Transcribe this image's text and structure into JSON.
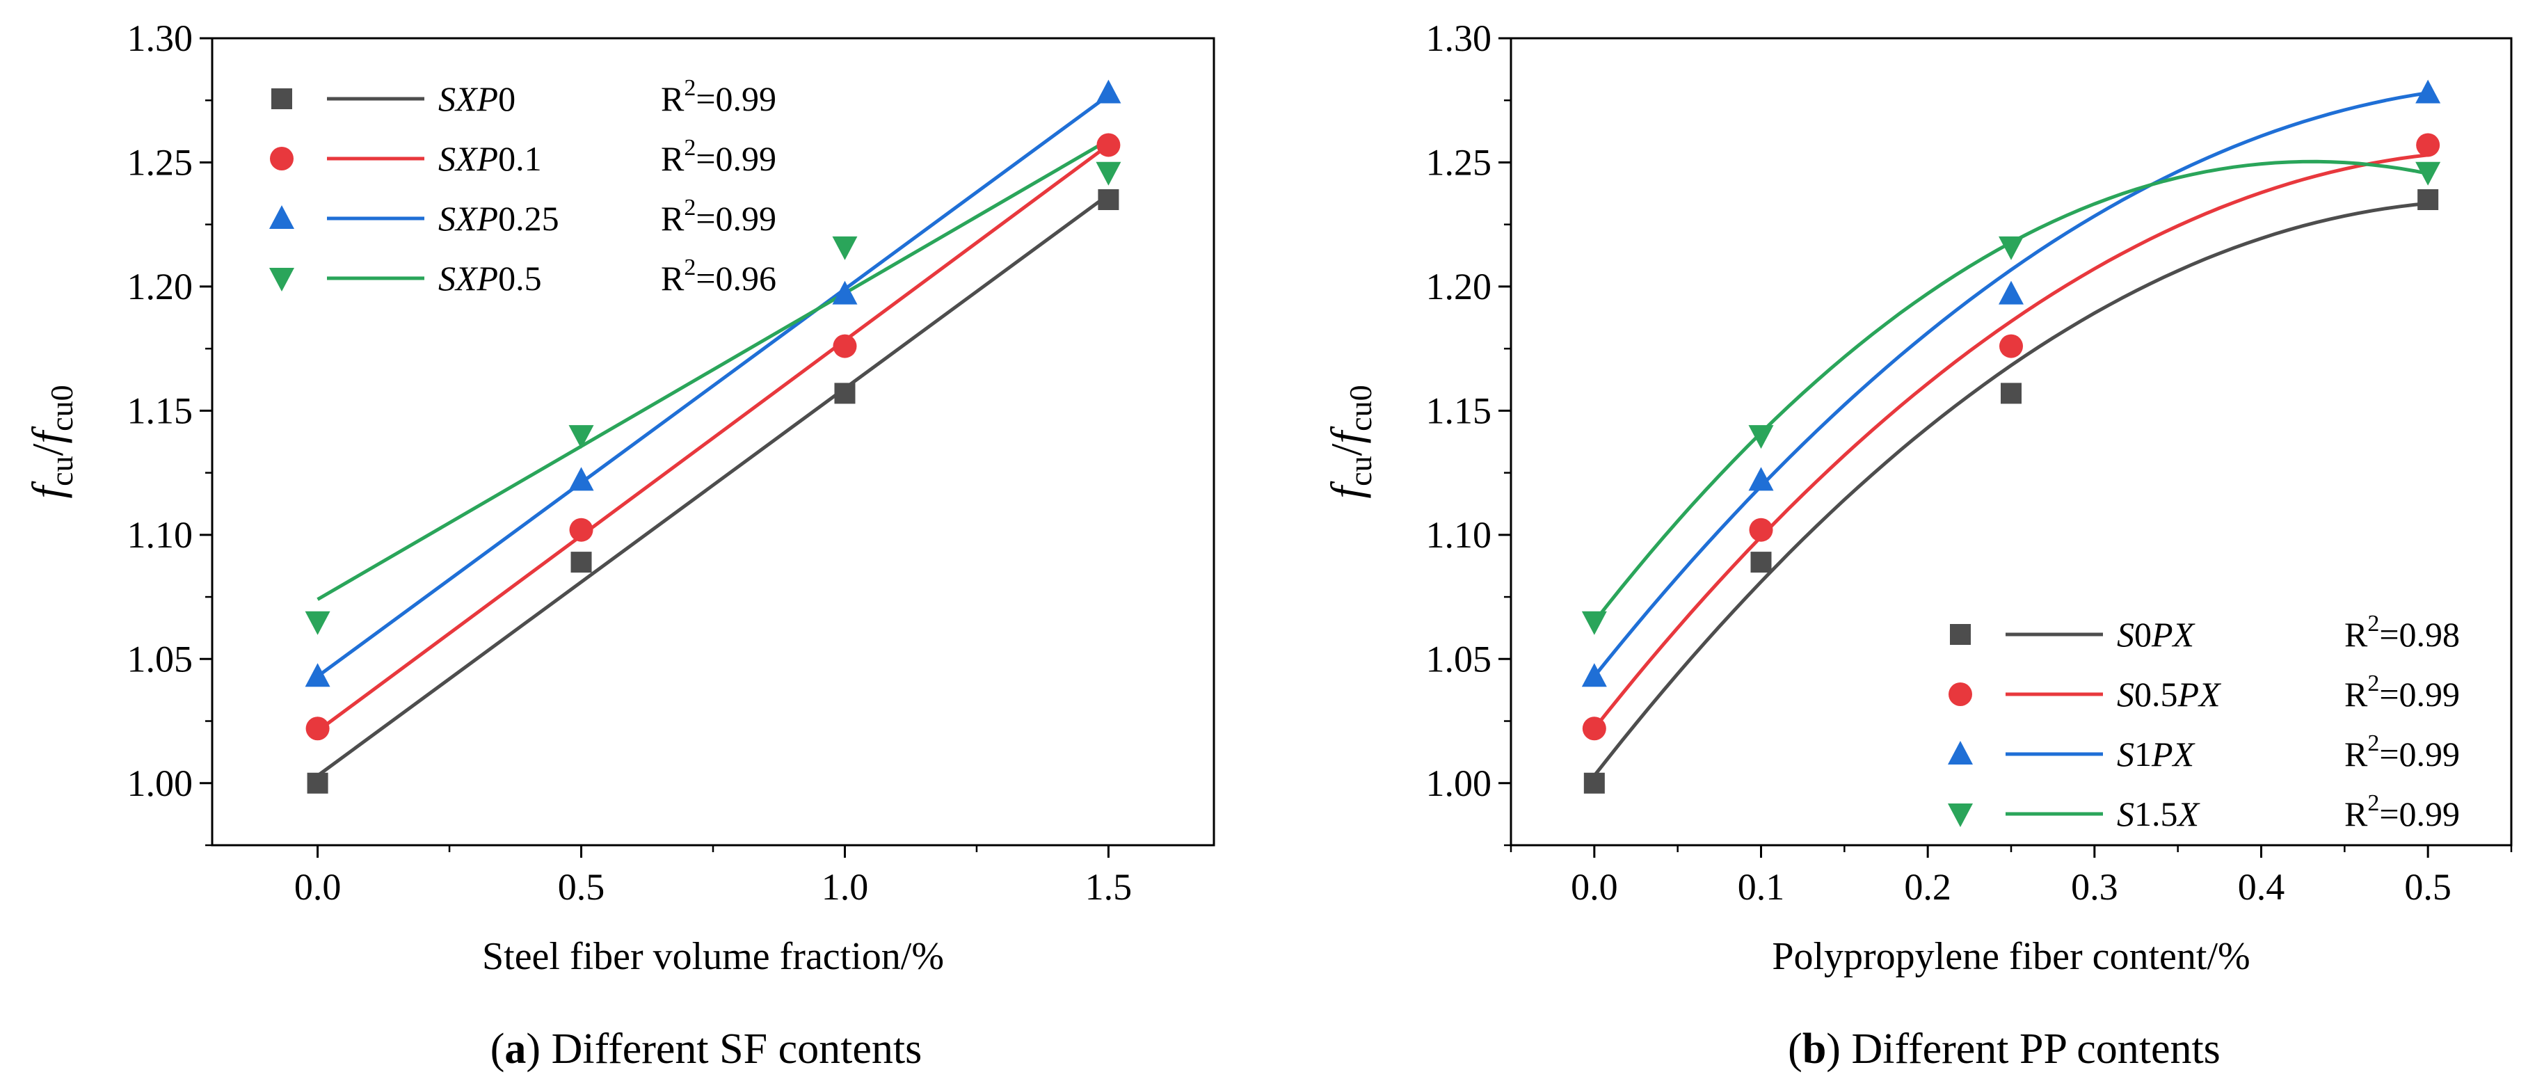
{
  "charts": [
    {
      "type": "line",
      "panel": "a",
      "caption_letter": "(a)",
      "caption_text": " Different SF contents",
      "ylabel_main": "f",
      "ylabel_sub1": "cu",
      "ylabel_sep": "/",
      "ylabel_main2": "f",
      "ylabel_sub2": "cu0",
      "xlabel": "Steel fiber volume fraction/%",
      "xlim": [
        -0.2,
        1.7
      ],
      "ylim": [
        0.975,
        1.3
      ],
      "xticks": [
        0.0,
        0.5,
        1.0,
        1.5
      ],
      "xtick_labels": [
        "0.0",
        "0.5",
        "1.0",
        "1.5"
      ],
      "yticks": [
        1.0,
        1.05,
        1.1,
        1.15,
        1.2,
        1.25,
        1.3
      ],
      "ytick_labels": [
        "1.00",
        "1.05",
        "1.10",
        "1.15",
        "1.20",
        "1.25",
        "1.30"
      ],
      "legend_position": "top-left",
      "series": [
        {
          "name_italic": "SXP",
          "name_rest": "0",
          "r2_prefix": "R",
          "r2_sup": "2",
          "r2_value": "=0.99",
          "color": "#4d4d4d",
          "marker": "square",
          "x": [
            0,
            0.5,
            1.0,
            1.5
          ],
          "y": [
            1.0,
            1.089,
            1.157,
            1.235
          ],
          "fit_x": [
            0,
            1.5
          ],
          "fit_y": [
            1.003,
            1.237
          ]
        },
        {
          "name_italic": "SXP",
          "name_rest": "0.1",
          "r2_prefix": "R",
          "r2_sup": "2",
          "r2_value": "=0.99",
          "color": "#e8383d",
          "marker": "circle",
          "x": [
            0,
            0.5,
            1.0,
            1.5
          ],
          "y": [
            1.022,
            1.102,
            1.176,
            1.257
          ],
          "fit_x": [
            0,
            1.5
          ],
          "fit_y": [
            1.021,
            1.257
          ]
        },
        {
          "name_italic": "SXP",
          "name_rest": "0.25",
          "r2_prefix": "R",
          "r2_sup": "2",
          "r2_value": "=0.99",
          "color": "#1f6fd6",
          "marker": "triangle-up",
          "x": [
            0,
            0.5,
            1.0,
            1.5
          ],
          "y": [
            1.043,
            1.122,
            1.197,
            1.278
          ],
          "fit_x": [
            0,
            1.5
          ],
          "fit_y": [
            1.043,
            1.277
          ]
        },
        {
          "name_italic": "SXP",
          "name_rest": "0.5",
          "r2_prefix": "R",
          "r2_sup": "2",
          "r2_value": "=0.96",
          "color": "#2aa55a",
          "marker": "triangle-down",
          "x": [
            0,
            0.5,
            1.0,
            1.5
          ],
          "y": [
            1.065,
            1.14,
            1.216,
            1.246
          ],
          "fit_x": [
            0,
            1.5
          ],
          "fit_y": [
            1.074,
            1.259
          ]
        }
      ]
    },
    {
      "type": "line",
      "panel": "b",
      "caption_letter": "(b)",
      "caption_text": " Different PP contents",
      "ylabel_main": "f",
      "ylabel_sub1": "cu",
      "ylabel_sep": "/",
      "ylabel_main2": "f",
      "ylabel_sub2": "cu0",
      "xlabel": "Polypropylene fiber content/%",
      "xlim": [
        -0.05,
        0.55
      ],
      "ylim": [
        0.975,
        1.3
      ],
      "xticks": [
        0.0,
        0.1,
        0.2,
        0.3,
        0.4,
        0.5
      ],
      "xtick_labels": [
        "0.0",
        "0.1",
        "0.2",
        "0.3",
        "0.4",
        "0.5"
      ],
      "yticks": [
        1.0,
        1.05,
        1.1,
        1.15,
        1.2,
        1.25,
        1.3
      ],
      "ytick_labels": [
        "1.00",
        "1.05",
        "1.10",
        "1.15",
        "1.20",
        "1.25",
        "1.30"
      ],
      "legend_position": "bottom-right",
      "series": [
        {
          "name_italic_pre": "S",
          "name_mid": "0",
          "name_italic": "PX",
          "r2_prefix": "R",
          "r2_sup": "2",
          "r2_value": "=0.98",
          "color": "#4d4d4d",
          "marker": "square",
          "x": [
            0,
            0.1,
            0.25,
            0.5
          ],
          "y": [
            1.0,
            1.089,
            1.157,
            1.235
          ],
          "fit_coef": [
            1.003,
            0.861,
            -0.8
          ]
        },
        {
          "name_italic_pre": "S",
          "name_mid": "0.5",
          "name_italic": "PX",
          "r2_prefix": "R",
          "r2_sup": "2",
          "r2_value": "=0.99",
          "color": "#e8383d",
          "marker": "circle",
          "x": [
            0,
            0.1,
            0.25,
            0.5
          ],
          "y": [
            1.022,
            1.102,
            1.176,
            1.257
          ],
          "fit_coef": [
            1.022,
            0.85,
            -0.776
          ]
        },
        {
          "name_italic_pre": "S",
          "name_mid": "1",
          "name_italic": "PX",
          "r2_prefix": "R",
          "r2_sup": "2",
          "r2_value": "=0.99",
          "color": "#1f6fd6",
          "marker": "triangle-up",
          "x": [
            0,
            0.1,
            0.25,
            0.5
          ],
          "y": [
            1.043,
            1.122,
            1.197,
            1.278
          ],
          "fit_coef": [
            1.043,
            0.84,
            -0.74
          ]
        },
        {
          "name_italic_pre": "S",
          "name_mid": "1.5",
          "name_italic": "X",
          "r2_prefix": "R",
          "r2_sup": "2",
          "r2_value": "=0.99",
          "color": "#2aa55a",
          "marker": "triangle-down",
          "x": [
            0,
            0.1,
            0.25,
            0.5
          ],
          "y": [
            1.065,
            1.14,
            1.216,
            1.246
          ],
          "fit_coef": [
            1.065,
            0.861,
            -1.0
          ]
        }
      ]
    }
  ]
}
